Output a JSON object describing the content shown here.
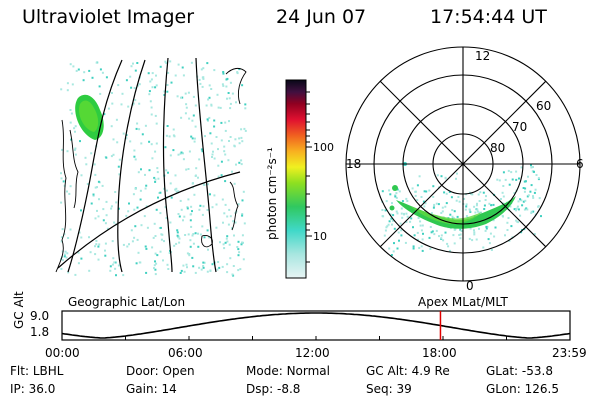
{
  "header": {
    "instrument": "Ultraviolet Imager",
    "date": "24 Jun 07",
    "time": "17:54:44 UT"
  },
  "colorbar": {
    "unit_label": "photon cm⁻²s⁻¹",
    "ticks": [
      "100",
      "10"
    ]
  },
  "polar_plot": {
    "mlt_labels": {
      "top": "12",
      "left": "18",
      "right": "6",
      "bottom": "0"
    },
    "lat_labels": [
      "60",
      "70",
      "80"
    ]
  },
  "panel_labels": {
    "left": "Geographic Lat/Lon",
    "right": "Apex MLat/MLT"
  },
  "altitude_strip": {
    "axis_label": "GC Alt",
    "y_ticks": [
      "9.0",
      "1.8"
    ],
    "time_ticks": [
      "00:00",
      "06:00",
      "12:00",
      "18:00",
      "23:59"
    ],
    "current_time_fraction": 0.745
  },
  "info": {
    "row1": [
      {
        "key": "Flt:",
        "val": "LBHL"
      },
      {
        "key": "Door:",
        "val": "Open"
      },
      {
        "key": "Mode:",
        "val": "Normal"
      },
      {
        "key": "GC Alt:",
        "val": "4.9 Re"
      },
      {
        "key": "GLat:",
        "val": "-53.8"
      }
    ],
    "row2": [
      {
        "key": "IP:",
        "val": "36.0"
      },
      {
        "key": "Gain:",
        "val": "14"
      },
      {
        "key": "Dsp:",
        "val": "-8.8"
      },
      {
        "key": "Seq:",
        "val": "39"
      },
      {
        "key": "GLon:",
        "val": "126.5"
      }
    ]
  },
  "colors": {
    "marker": "#e00000",
    "aurora_high": "#2ecc40",
    "aurora_mid": "#40d0c0",
    "aurora_low": "#a8e8e0"
  }
}
